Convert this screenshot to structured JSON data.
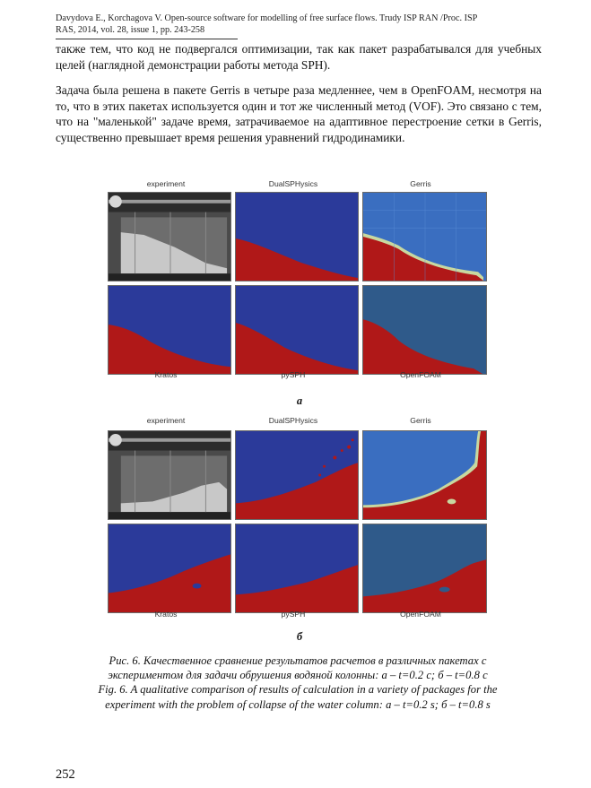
{
  "header": {
    "line1": "Davydova E., Korchagova V. Open-source software for modelling of free surface flows. Trudy ISP RAN /Proc. ISP",
    "line2": "RAS, 2014, vol. 28, issue 1, pp. 243-258"
  },
  "body": {
    "paragraph1": "также тем, что код не подвергался оптимизации, так как пакет разрабатывался для учебных целей (наглядной демонстрации работы метода SPH).",
    "paragraph2": "Задача была решена в пакете Gerris в четыре раза медленнее, чем в OpenFOAM, несмотря на то, что в этих пакетах используется один и тот же численный метод (VOF). Это связано с тем, что на \"маленькой\" задаче время, затрачиваемое на адаптивное перестроение сетки в Gerris, существенно превышает время решения уравнений гидродинамики."
  },
  "figure": {
    "part_a": {
      "top_labels": [
        "experiment",
        "DualSPHysics",
        "Gerris"
      ],
      "bottom_labels": [
        "Kratos",
        "pySPH",
        "OpenFOAM"
      ],
      "letter": "а"
    },
    "part_b": {
      "top_labels": [
        "experiment",
        "DualSPHysics",
        "Gerris"
      ],
      "bottom_labels": [
        "Kratos",
        "pySPH",
        "OpenFOAM"
      ],
      "letter": "б"
    },
    "caption_ru_line1": "Рис. 6. Качественное сравнение результатов расчетов в различных пакетах с",
    "caption_ru_line2": "экспериментом для задачи обрушения водяной колонны: а – t=0.2 с; б – t=0.8 с",
    "caption_en_line1": "Fig. 6. A qualitative comparison of results of calculation in a variety of packages for the",
    "caption_en_line2": "experiment with the problem of collapse of the water column: a – t=0.2 s; б – t=0.8 s"
  },
  "colors": {
    "fluid_red": "#b01818",
    "gas_blue": "#2b3a9a",
    "gerris_grid": "#3a6ec0"
  },
  "page_number": "252"
}
